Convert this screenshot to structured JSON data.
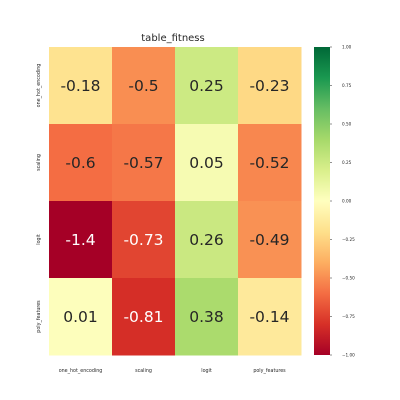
{
  "chart_data": {
    "type": "heatmap",
    "title": "table_fitness",
    "rows": [
      "one_hot_encoding",
      "scaling",
      "logit",
      "poly_features"
    ],
    "columns": [
      "one_hot_encoding",
      "scaling",
      "logit",
      "poly_features"
    ],
    "values": [
      [
        -0.18,
        -0.5,
        0.25,
        -0.23
      ],
      [
        -0.6,
        -0.57,
        0.05,
        -0.52
      ],
      [
        -1.4,
        -0.73,
        0.26,
        -0.49
      ],
      [
        0.01,
        -0.81,
        0.38,
        -0.14
      ]
    ],
    "value_labels": [
      [
        "-0.18",
        "-0.5",
        "0.25",
        "-0.23"
      ],
      [
        "-0.6",
        "-0.57",
        "0.05",
        "-0.52"
      ],
      [
        "-1.4",
        "-0.73",
        "0.26",
        "-0.49"
      ],
      [
        "0.01",
        "-0.81",
        "0.38",
        "-0.14"
      ]
    ],
    "colormap": "RdYlGn",
    "vmin": -1.0,
    "vmax": 1.0,
    "colorbar": {
      "placement": "right",
      "ticks": [
        1.0,
        0.75,
        0.5,
        0.25,
        0.0,
        -0.25,
        -0.5,
        -0.75,
        -1.0
      ],
      "tick_labels": [
        "1.00",
        "0.75",
        "0.50",
        "0.25",
        "0.00",
        "−0.25",
        "−0.50",
        "−0.75",
        "−1.00"
      ]
    },
    "grid": false
  }
}
